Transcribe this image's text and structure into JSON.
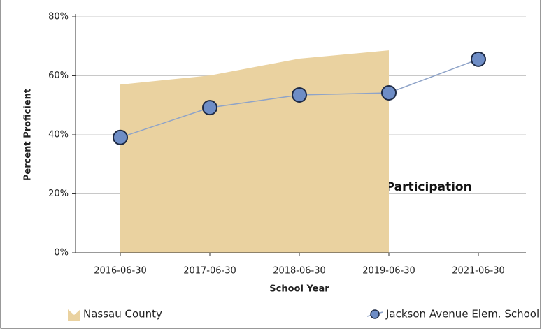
{
  "chart_data": {
    "type": "line",
    "x_label": "School Year",
    "y_label": "Percent Proficient",
    "categories": [
      "2016-06-30",
      "2017-06-30",
      "2018-06-30",
      "2019-06-30",
      "2021-06-30"
    ],
    "series": [
      {
        "name": "Nassau County",
        "kind": "area",
        "color": "#ead2a0",
        "values": [
          57.0,
          60.1,
          65.8,
          68.6,
          null
        ]
      },
      {
        "name": "Jackson Avenue Elem. School",
        "kind": "line",
        "color": "#8ea3c8",
        "marker_color": "#6e8dc6",
        "values": [
          39.1,
          49.2,
          53.5,
          54.2,
          65.6
        ]
      }
    ],
    "ylim": [
      0,
      80
    ],
    "yticks": [
      {
        "value": 0,
        "label": "0%"
      },
      {
        "value": 20,
        "label": "20%"
      },
      {
        "value": 40,
        "label": "40%"
      },
      {
        "value": 60,
        "label": "60%"
      },
      {
        "value": 80,
        "label": "80%"
      }
    ],
    "grid": true,
    "annotations": [
      {
        "text": "65% Participation"
      }
    ],
    "legend": "bottom"
  }
}
